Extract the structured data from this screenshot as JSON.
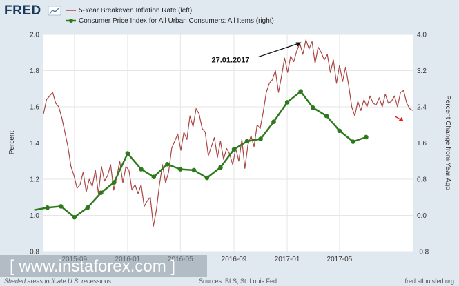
{
  "brand": {
    "logo": "FRED",
    "logo_icon": "line-chart-icon"
  },
  "chart_data": {
    "type": "line",
    "legend": [
      {
        "name": "5-Year Breakeven Inflation Rate (left)",
        "color": "#aa4643",
        "marker": false
      },
      {
        "name": "Consumer Price Index for All Urban Consumers: All Items (right)",
        "color": "#2d7a1d",
        "marker": true
      }
    ],
    "left_axis": {
      "title": "Percent",
      "min": 0.8,
      "max": 2.0,
      "ticks": [
        "0.8",
        "1.0",
        "1.2",
        "1.4",
        "1.6",
        "1.8",
        "2.0"
      ]
    },
    "right_axis": {
      "title": "Percent Change from Year Ago",
      "min": -0.8,
      "max": 4.0,
      "ticks": [
        "-0.8",
        "0.0",
        "0.8",
        "1.6",
        "2.4",
        "3.2",
        "4.0"
      ]
    },
    "x_axis": {
      "range": [
        "2015-06-22",
        "2017-10-16"
      ],
      "ticks": [
        {
          "label": "2015-09",
          "date": "2015-09-01"
        },
        {
          "label": "2016-01",
          "date": "2016-01-01"
        },
        {
          "label": "2016-05",
          "date": "2016-05-01"
        },
        {
          "label": "2016-09",
          "date": "2016-09-01"
        },
        {
          "label": "2017-01",
          "date": "2017-01-01"
        },
        {
          "label": "2017-05",
          "date": "2017-05-01"
        }
      ]
    },
    "grid": true,
    "series": [
      {
        "name": "5-Year Breakeven Inflation Rate (left)",
        "axis": "left",
        "color": "#aa4643",
        "x": [
          "2015-06-22",
          "2015-06-29",
          "2015-07-06",
          "2015-07-13",
          "2015-07-20",
          "2015-07-27",
          "2015-08-03",
          "2015-08-10",
          "2015-08-17",
          "2015-08-24",
          "2015-08-31",
          "2015-09-07",
          "2015-09-14",
          "2015-09-21",
          "2015-09-28",
          "2015-10-05",
          "2015-10-12",
          "2015-10-19",
          "2015-10-26",
          "2015-11-02",
          "2015-11-09",
          "2015-11-16",
          "2015-11-23",
          "2015-11-30",
          "2015-12-07",
          "2015-12-14",
          "2015-12-21",
          "2015-12-28",
          "2016-01-04",
          "2016-01-11",
          "2016-01-18",
          "2016-01-25",
          "2016-02-01",
          "2016-02-08",
          "2016-02-15",
          "2016-02-22",
          "2016-02-29",
          "2016-03-07",
          "2016-03-14",
          "2016-03-21",
          "2016-03-28",
          "2016-04-04",
          "2016-04-11",
          "2016-04-18",
          "2016-04-25",
          "2016-05-02",
          "2016-05-09",
          "2016-05-16",
          "2016-05-23",
          "2016-05-30",
          "2016-06-06",
          "2016-06-13",
          "2016-06-20",
          "2016-06-27",
          "2016-07-04",
          "2016-07-11",
          "2016-07-18",
          "2016-07-25",
          "2016-08-01",
          "2016-08-08",
          "2016-08-15",
          "2016-08-22",
          "2016-08-29",
          "2016-09-05",
          "2016-09-12",
          "2016-09-19",
          "2016-09-26",
          "2016-10-03",
          "2016-10-10",
          "2016-10-17",
          "2016-10-24",
          "2016-10-31",
          "2016-11-07",
          "2016-11-14",
          "2016-11-21",
          "2016-11-28",
          "2016-12-05",
          "2016-12-12",
          "2016-12-19",
          "2016-12-26",
          "2017-01-02",
          "2017-01-09",
          "2017-01-16",
          "2017-01-23",
          "2017-01-30",
          "2017-02-06",
          "2017-02-13",
          "2017-02-20",
          "2017-02-27",
          "2017-03-06",
          "2017-03-13",
          "2017-03-20",
          "2017-03-27",
          "2017-04-03",
          "2017-04-10",
          "2017-04-17",
          "2017-04-24",
          "2017-05-01",
          "2017-05-08",
          "2017-05-15",
          "2017-05-22",
          "2017-05-29",
          "2017-06-05",
          "2017-06-12",
          "2017-06-19",
          "2017-06-26",
          "2017-07-03",
          "2017-07-10",
          "2017-07-17",
          "2017-07-24",
          "2017-07-31",
          "2017-08-07",
          "2017-08-14",
          "2017-08-21",
          "2017-08-28",
          "2017-09-04",
          "2017-09-11",
          "2017-09-18",
          "2017-09-25",
          "2017-10-02",
          "2017-10-09",
          "2017-10-16"
        ],
        "values": [
          1.56,
          1.64,
          1.66,
          1.68,
          1.62,
          1.6,
          1.54,
          1.46,
          1.38,
          1.27,
          1.22,
          1.15,
          1.17,
          1.24,
          1.13,
          1.2,
          1.16,
          1.25,
          1.12,
          1.27,
          1.19,
          1.22,
          1.28,
          1.14,
          1.21,
          1.3,
          1.18,
          1.27,
          1.25,
          1.14,
          1.17,
          1.12,
          1.17,
          1.05,
          1.08,
          1.1,
          0.94,
          1.03,
          1.17,
          1.28,
          1.18,
          1.24,
          1.37,
          1.41,
          1.45,
          1.36,
          1.46,
          1.42,
          1.55,
          1.49,
          1.59,
          1.56,
          1.48,
          1.46,
          1.33,
          1.38,
          1.43,
          1.32,
          1.41,
          1.31,
          1.37,
          1.34,
          1.28,
          1.37,
          1.3,
          1.42,
          1.26,
          1.39,
          1.44,
          1.38,
          1.5,
          1.48,
          1.57,
          1.68,
          1.73,
          1.75,
          1.8,
          1.68,
          1.77,
          1.87,
          1.79,
          1.88,
          1.85,
          1.91,
          1.95,
          1.89,
          1.97,
          1.92,
          1.96,
          1.84,
          1.93,
          1.9,
          1.86,
          1.89,
          1.79,
          1.86,
          1.73,
          1.83,
          1.74,
          1.82,
          1.72,
          1.6,
          1.55,
          1.63,
          1.58,
          1.64,
          1.6,
          1.66,
          1.62,
          1.61,
          1.65,
          1.6,
          1.67,
          1.62,
          1.63,
          1.66,
          1.6,
          1.68,
          1.69,
          1.62,
          1.59,
          1.58
        ]
      },
      {
        "name": "Consumer Price Index for All Urban Consumers: All Items (right)",
        "axis": "right",
        "color": "#2d7a1d",
        "x": [
          "2015-06-01",
          "2015-07-01",
          "2015-08-01",
          "2015-09-01",
          "2015-10-01",
          "2015-11-01",
          "2015-12-01",
          "2016-01-01",
          "2016-02-01",
          "2016-03-01",
          "2016-04-01",
          "2016-05-01",
          "2016-06-01",
          "2016-07-01",
          "2016-08-01",
          "2016-09-01",
          "2016-10-01",
          "2016-11-01",
          "2016-12-01",
          "2017-01-01",
          "2017-02-01",
          "2017-03-01",
          "2017-04-01",
          "2017-05-01",
          "2017-06-01",
          "2017-07-01"
        ],
        "values": [
          0.12,
          0.17,
          0.2,
          -0.04,
          0.17,
          0.5,
          0.73,
          1.37,
          1.02,
          0.85,
          1.13,
          1.02,
          1.0,
          0.83,
          1.06,
          1.46,
          1.64,
          1.69,
          2.07,
          2.5,
          2.74,
          2.38,
          2.2,
          1.87,
          1.63,
          1.73
        ]
      }
    ],
    "annotations": [
      {
        "text": "27.01.2017",
        "type": "arrow-callout",
        "target_date": "2017-02-07",
        "target_value": 1.96
      },
      {
        "text": "",
        "type": "red-arrow",
        "target_date": "2017-09-25",
        "target_value": 1.52
      }
    ]
  },
  "footer": {
    "shaded_note": "Shaded areas indicate U.S. recessions",
    "sources": "Sources: BLS, St. Louis Fed",
    "site": "fred.stlouisfed.org"
  },
  "watermark": {
    "text": "[  www.instaforex.com  ]"
  }
}
